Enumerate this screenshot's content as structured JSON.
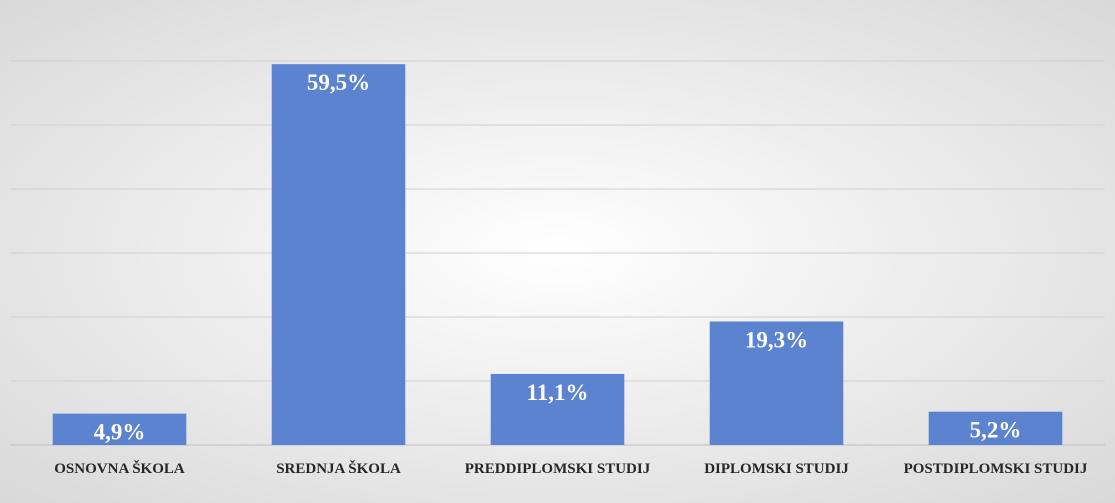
{
  "chart_data": {
    "type": "bar",
    "categories": [
      "OSNOVNA ŠKOLA",
      "SREDNJA ŠKOLA",
      "PREDDIPLOMSKI STUDIJ",
      "DIPLOMSKI STUDIJ",
      "POSTDIPLOMSKI STUDIJ"
    ],
    "values": [
      4.9,
      59.5,
      11.1,
      19.3,
      5.2
    ],
    "value_labels": [
      "4,9%",
      "59,5%",
      "11,1%",
      "19,3%",
      "5,2%"
    ],
    "color": "#5b83cf",
    "ylim": [
      0,
      60
    ],
    "yticks": [
      0,
      10,
      20,
      30,
      40,
      50,
      60
    ],
    "grid": true
  }
}
